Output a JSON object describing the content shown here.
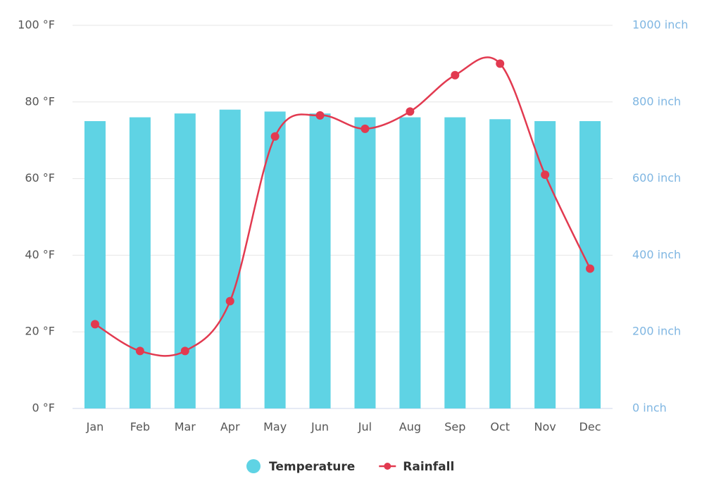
{
  "chart_data": {
    "type": "bar_line",
    "categories": [
      "Jan",
      "Feb",
      "Mar",
      "Apr",
      "May",
      "Jun",
      "Jul",
      "Aug",
      "Sep",
      "Oct",
      "Nov",
      "Dec"
    ],
    "series": [
      {
        "name": "Temperature",
        "type": "bar",
        "color": "#5fd3e4",
        "values": [
          75,
          76,
          77,
          78,
          77.5,
          77,
          76,
          76,
          76,
          75.5,
          75,
          75
        ]
      },
      {
        "name": "Rainfall",
        "type": "line",
        "axis": "y2",
        "color": "#e23a50",
        "values": [
          220,
          150,
          150,
          280,
          710,
          765,
          730,
          775,
          870,
          900,
          610,
          365
        ]
      }
    ],
    "ylim": [
      0,
      100
    ],
    "yticks": [
      {
        "value": 0,
        "label": "0 °F"
      },
      {
        "value": 20,
        "label": "20 °F"
      },
      {
        "value": 40,
        "label": "40 °F"
      },
      {
        "value": 60,
        "label": "60 °F"
      },
      {
        "value": 80,
        "label": "80 °F"
      },
      {
        "value": 100,
        "label": "100 °F"
      }
    ],
    "y2lim": [
      0,
      1000
    ],
    "y2ticks": [
      {
        "value": 0,
        "label": "0 inch"
      },
      {
        "value": 200,
        "label": "200 inch"
      },
      {
        "value": 400,
        "label": "400 inch"
      },
      {
        "value": 600,
        "label": "600 inch"
      },
      {
        "value": 800,
        "label": "800 inch"
      },
      {
        "value": 1000,
        "label": "1000 inch"
      }
    ],
    "grid": true,
    "legend": "bottom"
  }
}
